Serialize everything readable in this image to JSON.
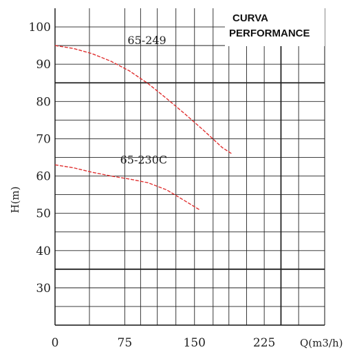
{
  "chart_data": {
    "type": "line",
    "title_lines": [
      "CURVA",
      "PERFORMANCE"
    ],
    "xlabel": "Q(m3/h)",
    "ylabel": "H(m)",
    "x_ticks": [
      "0",
      "75",
      "150",
      "225"
    ],
    "y_ticks": [
      "30",
      "40",
      "50",
      "60",
      "70",
      "80",
      "90",
      "100"
    ],
    "xlim": [
      0,
      290
    ],
    "ylim": [
      20,
      105
    ],
    "grid": true,
    "series": [
      {
        "name": "65-249",
        "color": "#e03030",
        "x": [
          0,
          20,
          40,
          60,
          80,
          100,
          120,
          140,
          160,
          180,
          190
        ],
        "y": [
          95,
          94.2,
          92.8,
          90.8,
          88.2,
          84.8,
          80.8,
          76.6,
          72.2,
          67.6,
          66
        ]
      },
      {
        "name": "65-230C",
        "color": "#e03030",
        "x": [
          0,
          20,
          40,
          60,
          80,
          100,
          120,
          140,
          155
        ],
        "y": [
          63,
          62.2,
          61,
          60,
          59.2,
          58.2,
          56.3,
          53.3,
          51
        ]
      }
    ]
  }
}
